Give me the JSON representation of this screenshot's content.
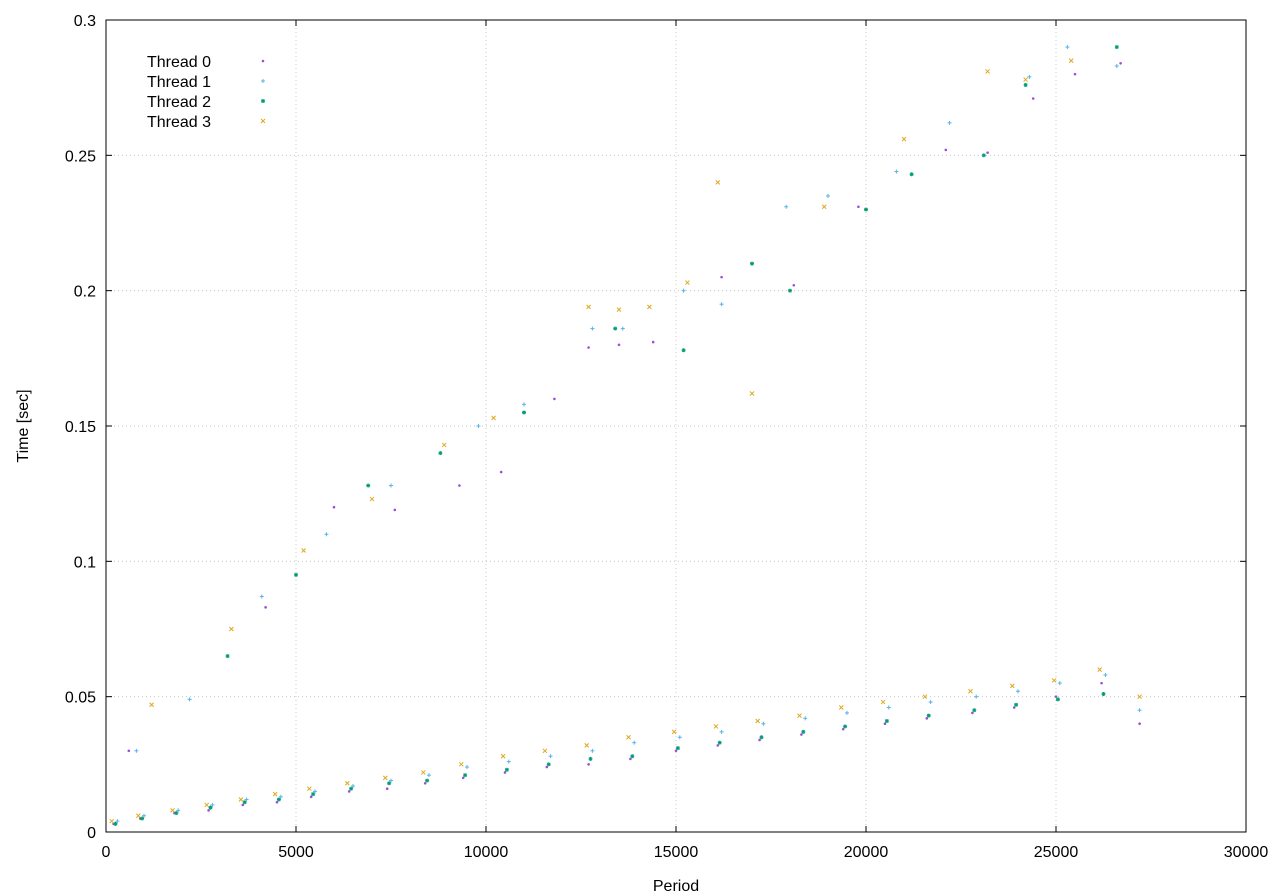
{
  "chart_data": {
    "type": "scatter",
    "title": "",
    "xlabel": "Period",
    "ylabel": "Time [sec]",
    "xlim": [
      0,
      30000
    ],
    "ylim": [
      0,
      0.3
    ],
    "x_ticks": [
      0,
      5000,
      10000,
      15000,
      20000,
      25000,
      30000
    ],
    "y_ticks": [
      0,
      0.05,
      0.1,
      0.15,
      0.2,
      0.25,
      0.3
    ],
    "x_tick_labels": [
      "0",
      "5000",
      "10000",
      "15000",
      "20000",
      "25000",
      "30000"
    ],
    "y_tick_labels": [
      "0",
      "0.05",
      "0.1",
      "0.15",
      "0.2",
      "0.25",
      "0.3"
    ],
    "grid": true,
    "legend_position": "top-left",
    "series": [
      {
        "name": "Thread 0",
        "color": "#9b4fd6",
        "marker": "dot",
        "points": [
          [
            200,
            0.003
          ],
          [
            900,
            0.005
          ],
          [
            1800,
            0.007
          ],
          [
            2700,
            0.008
          ],
          [
            3600,
            0.01
          ],
          [
            4500,
            0.011
          ],
          [
            5400,
            0.013
          ],
          [
            6400,
            0.015
          ],
          [
            7400,
            0.016
          ],
          [
            8400,
            0.018
          ],
          [
            9400,
            0.02
          ],
          [
            10500,
            0.022
          ],
          [
            11600,
            0.024
          ],
          [
            12700,
            0.025
          ],
          [
            13800,
            0.027
          ],
          [
            15000,
            0.03
          ],
          [
            16100,
            0.032
          ],
          [
            17200,
            0.034
          ],
          [
            18300,
            0.036
          ],
          [
            19400,
            0.038
          ],
          [
            20500,
            0.04
          ],
          [
            21600,
            0.042
          ],
          [
            22800,
            0.044
          ],
          [
            23900,
            0.046
          ],
          [
            25000,
            0.05
          ],
          [
            26200,
            0.055
          ],
          [
            27200,
            0.04
          ],
          [
            600,
            0.03
          ],
          [
            4200,
            0.083
          ],
          [
            6000,
            0.12
          ],
          [
            7600,
            0.119
          ],
          [
            9300,
            0.128
          ],
          [
            10400,
            0.133
          ],
          [
            11800,
            0.16
          ],
          [
            12700,
            0.179
          ],
          [
            13500,
            0.18
          ],
          [
            14400,
            0.181
          ],
          [
            16200,
            0.205
          ],
          [
            18100,
            0.202
          ],
          [
            19800,
            0.231
          ],
          [
            22100,
            0.252
          ],
          [
            23200,
            0.251
          ],
          [
            24400,
            0.271
          ],
          [
            25500,
            0.28
          ],
          [
            26700,
            0.284
          ]
        ]
      },
      {
        "name": "Thread 1",
        "color": "#56b4e9",
        "marker": "plus",
        "points": [
          [
            300,
            0.004
          ],
          [
            1000,
            0.006
          ],
          [
            1900,
            0.008
          ],
          [
            2800,
            0.01
          ],
          [
            3700,
            0.012
          ],
          [
            4600,
            0.013
          ],
          [
            5500,
            0.015
          ],
          [
            6500,
            0.017
          ],
          [
            7500,
            0.019
          ],
          [
            8500,
            0.021
          ],
          [
            9500,
            0.024
          ],
          [
            10600,
            0.026
          ],
          [
            11700,
            0.028
          ],
          [
            12800,
            0.03
          ],
          [
            13900,
            0.033
          ],
          [
            15100,
            0.035
          ],
          [
            16200,
            0.037
          ],
          [
            17300,
            0.04
          ],
          [
            18400,
            0.042
          ],
          [
            19500,
            0.044
          ],
          [
            20600,
            0.046
          ],
          [
            21700,
            0.048
          ],
          [
            22900,
            0.05
          ],
          [
            24000,
            0.052
          ],
          [
            25100,
            0.055
          ],
          [
            26300,
            0.058
          ],
          [
            27200,
            0.045
          ],
          [
            800,
            0.03
          ],
          [
            2200,
            0.049
          ],
          [
            4100,
            0.087
          ],
          [
            5800,
            0.11
          ],
          [
            7500,
            0.128
          ],
          [
            9800,
            0.15
          ],
          [
            11000,
            0.158
          ],
          [
            12800,
            0.186
          ],
          [
            13600,
            0.186
          ],
          [
            15200,
            0.2
          ],
          [
            16200,
            0.195
          ],
          [
            17900,
            0.231
          ],
          [
            19000,
            0.235
          ],
          [
            20800,
            0.244
          ],
          [
            22200,
            0.262
          ],
          [
            24300,
            0.279
          ],
          [
            25300,
            0.29
          ],
          [
            26600,
            0.283
          ]
        ]
      },
      {
        "name": "Thread 2",
        "color": "#009e73",
        "marker": "star",
        "points": [
          [
            250,
            0.003
          ],
          [
            950,
            0.005
          ],
          [
            1850,
            0.007
          ],
          [
            2750,
            0.009
          ],
          [
            3650,
            0.011
          ],
          [
            4550,
            0.012
          ],
          [
            5450,
            0.014
          ],
          [
            6450,
            0.016
          ],
          [
            7450,
            0.018
          ],
          [
            8450,
            0.019
          ],
          [
            9450,
            0.021
          ],
          [
            10550,
            0.023
          ],
          [
            11650,
            0.025
          ],
          [
            12750,
            0.027
          ],
          [
            13850,
            0.028
          ],
          [
            15050,
            0.031
          ],
          [
            16150,
            0.033
          ],
          [
            17250,
            0.035
          ],
          [
            18350,
            0.037
          ],
          [
            19450,
            0.039
          ],
          [
            20550,
            0.041
          ],
          [
            21650,
            0.043
          ],
          [
            22850,
            0.045
          ],
          [
            23950,
            0.047
          ],
          [
            25050,
            0.049
          ],
          [
            26250,
            0.051
          ],
          [
            3200,
            0.065
          ],
          [
            5000,
            0.095
          ],
          [
            6900,
            0.128
          ],
          [
            8800,
            0.14
          ],
          [
            11000,
            0.155
          ],
          [
            13400,
            0.186
          ],
          [
            15200,
            0.178
          ],
          [
            17000,
            0.21
          ],
          [
            18000,
            0.2
          ],
          [
            20000,
            0.23
          ],
          [
            21200,
            0.243
          ],
          [
            23100,
            0.25
          ],
          [
            24200,
            0.276
          ],
          [
            26600,
            0.29
          ]
        ]
      },
      {
        "name": "Thread 3",
        "color": "#e0a81e",
        "marker": "cross",
        "points": [
          [
            150,
            0.004
          ],
          [
            850,
            0.006
          ],
          [
            1750,
            0.008
          ],
          [
            2650,
            0.01
          ],
          [
            3550,
            0.012
          ],
          [
            4450,
            0.014
          ],
          [
            5350,
            0.016
          ],
          [
            6350,
            0.018
          ],
          [
            7350,
            0.02
          ],
          [
            8350,
            0.022
          ],
          [
            9350,
            0.025
          ],
          [
            10450,
            0.028
          ],
          [
            11550,
            0.03
          ],
          [
            12650,
            0.032
          ],
          [
            13750,
            0.035
          ],
          [
            14950,
            0.037
          ],
          [
            16050,
            0.039
          ],
          [
            17150,
            0.041
          ],
          [
            18250,
            0.043
          ],
          [
            19350,
            0.046
          ],
          [
            20450,
            0.048
          ],
          [
            21550,
            0.05
          ],
          [
            22750,
            0.052
          ],
          [
            23850,
            0.054
          ],
          [
            24950,
            0.056
          ],
          [
            26150,
            0.06
          ],
          [
            27200,
            0.05
          ],
          [
            1200,
            0.047
          ],
          [
            3300,
            0.075
          ],
          [
            5200,
            0.104
          ],
          [
            7000,
            0.123
          ],
          [
            8900,
            0.143
          ],
          [
            10200,
            0.153
          ],
          [
            12700,
            0.194
          ],
          [
            13500,
            0.193
          ],
          [
            14300,
            0.194
          ],
          [
            15300,
            0.203
          ],
          [
            16100,
            0.24
          ],
          [
            17000,
            0.162
          ],
          [
            18900,
            0.231
          ],
          [
            21000,
            0.256
          ],
          [
            23200,
            0.281
          ],
          [
            24200,
            0.278
          ],
          [
            25400,
            0.285
          ]
        ]
      }
    ]
  }
}
